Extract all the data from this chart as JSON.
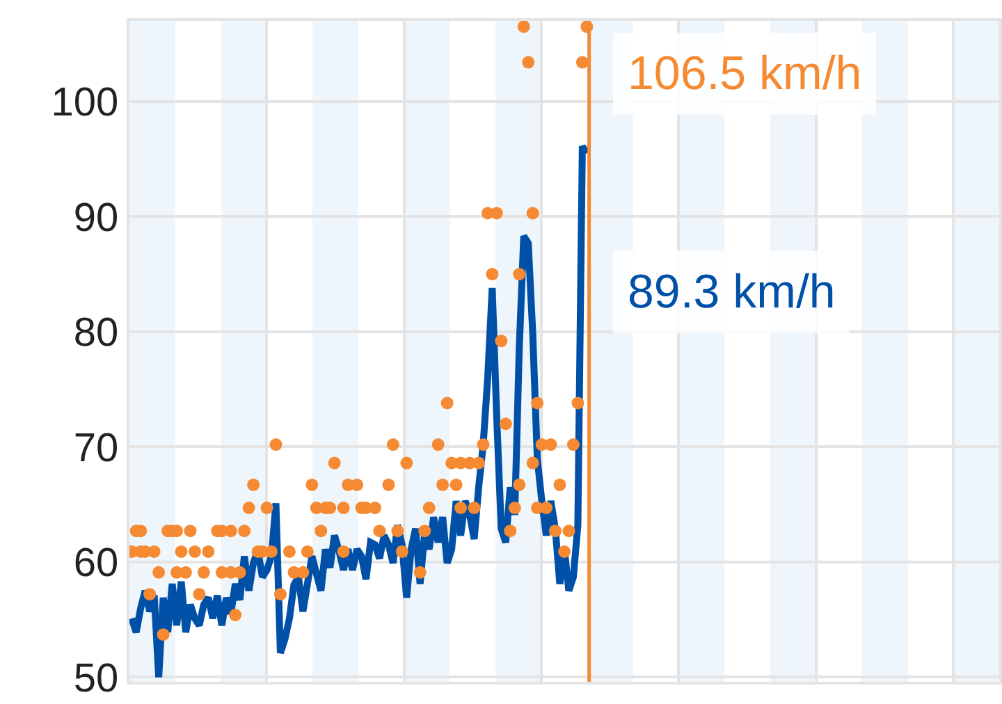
{
  "chart_data": {
    "type": "line",
    "categories": [
      null,
      null,
      null,
      null,
      null,
      null,
      null,
      null,
      null,
      null,
      null,
      null,
      null,
      null,
      null,
      null,
      null,
      null,
      null,
      null,
      null,
      null,
      null,
      null,
      null,
      null,
      null,
      null,
      null,
      null,
      null,
      null,
      null,
      null,
      null,
      null,
      null,
      null,
      null,
      null,
      null,
      null,
      null,
      null,
      null,
      null,
      null,
      null,
      null,
      null,
      null,
      null,
      null,
      null,
      null,
      null,
      null,
      null,
      null,
      null,
      null,
      null,
      null,
      null,
      null,
      null,
      null,
      null,
      null,
      null,
      null,
      null,
      null,
      null,
      null,
      null,
      null,
      null,
      null,
      null,
      null,
      null,
      null,
      null,
      null,
      null,
      null,
      null,
      null,
      null,
      null,
      null,
      null,
      null,
      null,
      null,
      null,
      null,
      null,
      null,
      null,
      null,
      null,
      null,
      null,
      null,
      null,
      null,
      null,
      null,
      null,
      null,
      null,
      null,
      null,
      null,
      null,
      null,
      null,
      null,
      null,
      null,
      null,
      null,
      null,
      null,
      null,
      null,
      null,
      null,
      null,
      null,
      null,
      null,
      null,
      null,
      null,
      null,
      null,
      null,
      null,
      null,
      null,
      null,
      null,
      null,
      null,
      null,
      null,
      null,
      null,
      null,
      null,
      null,
      null,
      null,
      null,
      null,
      null,
      null,
      null,
      null,
      null,
      null,
      null,
      null,
      null,
      null,
      null,
      null,
      null,
      null,
      null,
      null,
      null,
      null,
      null,
      null,
      null,
      null,
      null,
      null,
      null,
      null,
      null,
      null,
      null,
      null,
      null,
      null,
      null,
      null,
      null
    ],
    "ylim": [
      49.6,
      107
    ],
    "yticks": [
      50,
      60,
      70,
      80,
      90,
      100
    ],
    "tick_labels": "y",
    "grid": true,
    "series": [
      {
        "color": "#0050a8",
        "values": [
          55.1,
          53.9,
          56.0,
          57.5,
          55.7,
          57.1,
          50.0,
          56.9,
          53.9,
          58.1,
          54.5,
          58.3,
          53.9,
          56.3,
          55.1,
          54.5,
          56.3,
          56.9,
          55.1,
          57.1,
          54.5,
          56.9,
          55.5,
          58.1,
          56.7,
          60.5,
          57.5,
          59.9,
          61.0,
          58.7,
          59.3,
          60.5,
          65.1,
          52.1,
          53.3,
          55.1,
          58.0,
          58.7,
          55.7,
          58.1,
          60.5,
          59.0,
          57.5,
          61.1,
          59.5,
          62.3,
          61.0,
          59.3,
          61.1,
          59.3,
          61.1,
          60.5,
          58.5,
          61.7,
          61.5,
          60.3,
          62.3,
          61.5,
          59.9,
          63.2,
          61.5,
          56.9,
          61.1,
          62.9,
          58.1,
          62.5,
          61.1,
          63.9,
          61.7,
          63.9,
          59.9,
          61.1,
          65.3,
          62.3,
          65.3,
          64.1,
          62.0,
          66.5,
          70.2,
          76.0,
          83.8,
          72.6,
          62.9,
          61.7,
          66.5,
          64.1,
          78.6,
          88.3,
          87.7,
          79.8,
          69.0,
          65.3,
          62.3,
          65.3,
          62.9,
          58.1,
          61.1,
          57.5,
          58.7,
          63.2,
          96.1,
          95.5,
          null,
          null,
          null,
          null,
          null,
          null,
          null,
          null,
          null,
          null,
          null,
          null,
          null,
          null,
          null,
          null,
          null,
          null,
          null,
          null,
          null,
          null,
          null,
          null,
          null,
          null,
          null,
          null,
          null,
          null,
          null,
          null,
          null,
          null,
          null,
          null,
          null,
          null,
          null,
          null,
          null,
          null,
          null,
          null,
          null,
          null,
          null,
          null,
          null,
          null,
          null,
          null,
          null,
          null,
          null,
          null,
          null,
          null,
          null,
          null,
          null,
          null,
          null,
          null,
          null,
          null,
          null,
          null,
          null,
          null,
          null,
          null,
          null,
          null,
          null,
          null,
          null,
          null,
          null,
          null,
          null,
          null,
          null,
          null,
          null,
          null,
          null,
          null,
          null,
          null,
          null
        ]
      },
      {
        "type": "scatter",
        "marker": "circle",
        "color": "#f58a33",
        "values": [
          60.9,
          62.7,
          62.7,
          60.9,
          57.2,
          60.9,
          59.1,
          53.7,
          62.7,
          62.7,
          62.7,
          60.9,
          59.1,
          62.7,
          60.9,
          57.2,
          59.1,
          60.9,
          null,
          62.7,
          62.7,
          null,
          62.7,
          55.4,
          59.1,
          62.7,
          64.7,
          66.7,
          60.9,
          60.9,
          64.7,
          60.9,
          70.2,
          57.2,
          null,
          60.9,
          59.1,
          null,
          59.1,
          60.9,
          66.7,
          64.7,
          62.7,
          64.7,
          64.7,
          68.6,
          null,
          64.7,
          66.7,
          null,
          66.7,
          64.7,
          64.7,
          null,
          64.7,
          62.7,
          null,
          66.7,
          70.2,
          62.7,
          60.9,
          68.6,
          null,
          null,
          59.1,
          62.7,
          64.7,
          null,
          70.2,
          66.7,
          73.8,
          68.6,
          66.7,
          68.6,
          null,
          68.6,
          64.7,
          68.6,
          70.2,
          90.3,
          85.0,
          90.3,
          79.2,
          72.0,
          62.7,
          64.7,
          85.0,
          106.5,
          103.4,
          90.3,
          73.8,
          70.2,
          64.7,
          70.2,
          62.7,
          66.7,
          60.9,
          62.7,
          70.2,
          73.8,
          103.4,
          106.5,
          null,
          null,
          null,
          null,
          null,
          null,
          null,
          null,
          null,
          null,
          null,
          null,
          null,
          null,
          null,
          null,
          null,
          null,
          null,
          null,
          null,
          null,
          null,
          null,
          null,
          null,
          null,
          null,
          null,
          null,
          null,
          null,
          null,
          null,
          null,
          null,
          null,
          null,
          null,
          null,
          null,
          null,
          null,
          null,
          null,
          null,
          null,
          null,
          null,
          null,
          null,
          null,
          null,
          null,
          null,
          null,
          null,
          null,
          null,
          null,
          null,
          null,
          null,
          null,
          null,
          null,
          null,
          null,
          null,
          null,
          null,
          null,
          null,
          null,
          null,
          null,
          null,
          null,
          null,
          null,
          null,
          null,
          null,
          null,
          null,
          null,
          null,
          null,
          null,
          null,
          null
        ]
      },
      {
        "type": "scatter",
        "marker": "circle",
        "color": "#f58a33",
        "values": [
          null,
          null,
          60.9,
          null,
          null,
          null,
          null,
          null,
          null,
          null,
          59.1,
          null,
          null,
          null,
          null,
          null,
          null,
          null,
          null,
          null,
          59.1,
          null,
          59.1,
          null,
          null,
          null,
          null,
          null,
          null,
          null,
          null,
          null,
          null,
          null,
          null,
          null,
          null,
          null,
          null,
          null,
          null,
          null,
          null,
          null,
          null,
          null,
          null,
          60.9,
          null,
          null,
          null,
          null,
          null,
          null,
          null,
          null,
          null,
          null,
          null,
          null,
          null,
          null,
          null,
          null,
          null,
          null,
          null,
          null,
          null,
          null,
          null,
          null,
          null,
          64.7,
          null,
          null,
          null,
          null,
          null,
          null,
          null,
          null,
          null,
          null,
          null,
          null,
          66.7,
          null,
          null,
          68.6,
          64.7,
          null,
          null,
          null,
          null,
          null,
          null,
          null,
          null,
          null,
          null,
          null,
          null,
          null,
          null,
          null,
          null,
          null,
          null,
          null,
          null,
          null,
          null,
          null,
          null,
          null,
          null,
          null,
          null,
          null,
          null,
          null,
          null,
          null,
          null,
          null,
          null,
          null,
          null,
          null,
          null,
          null,
          null,
          null,
          null,
          null,
          null,
          null,
          null,
          null,
          null,
          null,
          null,
          null,
          null,
          null,
          null,
          null,
          null,
          null,
          null,
          null,
          null,
          null,
          null,
          null,
          null,
          null,
          null,
          null,
          null,
          null,
          null,
          null,
          null,
          null,
          null,
          null,
          null,
          null,
          null,
          null,
          null,
          null,
          null,
          null,
          null,
          null,
          null,
          null,
          null,
          null,
          null,
          null,
          null,
          null,
          null,
          null,
          null,
          null,
          null,
          null,
          null
        ]
      }
    ],
    "annotations": [
      "106.5 km/h",
      "89.3 km/h"
    ]
  }
}
